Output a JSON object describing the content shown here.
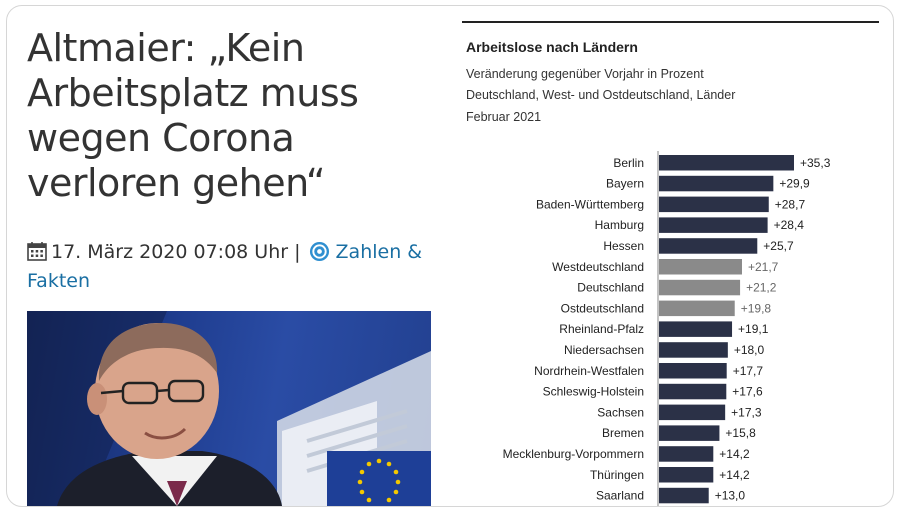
{
  "article": {
    "headline": "Altmaier: „Kein Arbeitsplatz muss wegen Corona verloren gehen“",
    "date": "17. März 2020 07:08 Uhr",
    "separator": "|",
    "category": "Zahlen & Fakten",
    "photo_emblem_icon": "eu-stars-emblem"
  },
  "chart_data": {
    "type": "bar",
    "orientation": "horizontal",
    "title": "Arbeitslose nach Ländern",
    "subtitle_lines": [
      "Veränderung gegenüber Vorjahr in Prozent",
      "Deutschland, West- und Ostdeutschland, Länder",
      "Februar 2021"
    ],
    "categories": [
      "Berlin",
      "Bayern",
      "Baden-Württemberg",
      "Hamburg",
      "Hessen",
      "Westdeutschland",
      "Deutschland",
      "Ostdeutschland",
      "Rheinland-Pfalz",
      "Niedersachsen",
      "Nordrhein-Westfalen",
      "Schleswig-Holstein",
      "Sachsen",
      "Bremen",
      "Mecklenburg-Vorpommern",
      "Thüringen",
      "Saarland"
    ],
    "values": [
      35.3,
      29.9,
      28.7,
      28.4,
      25.7,
      21.7,
      21.2,
      19.8,
      19.1,
      18.0,
      17.7,
      17.6,
      17.3,
      15.8,
      14.2,
      14.2,
      13.0
    ],
    "value_labels": [
      "+35,3",
      "+29,9",
      "+28,7",
      "+28,4",
      "+25,7",
      "+21,7",
      "+21,2",
      "+19,8",
      "+19,1",
      "+18,0",
      "+17,7",
      "+17,6",
      "+17,3",
      "+15,8",
      "+14,2",
      "+14,2",
      "+13,0"
    ],
    "highlighted": [
      "Westdeutschland",
      "Deutschland",
      "Ostdeutschland"
    ],
    "colors": {
      "bar": "#2b3147",
      "highlight_bar": "#8a8a8a"
    }
  }
}
